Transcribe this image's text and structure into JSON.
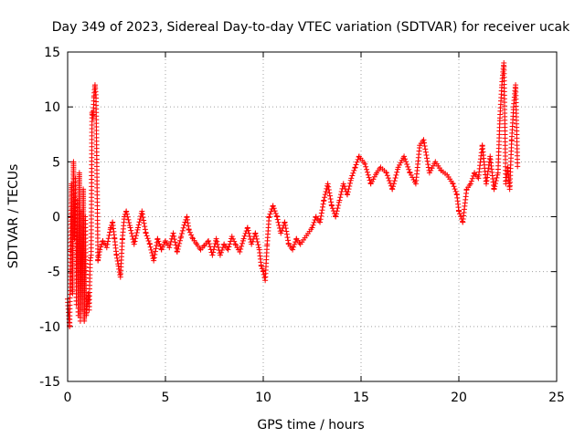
{
  "chart_data": {
    "type": "scatter",
    "title": "Day 349 of 2023, Sidereal Day-to-day VTEC variation (SDTVAR) for receiver ucak",
    "xlabel": "GPS time / hours",
    "ylabel": "SDTVAR / TECUs",
    "xlim": [
      0,
      25
    ],
    "ylim": [
      -15,
      15
    ],
    "xticks": [
      0,
      5,
      10,
      15,
      20,
      25
    ],
    "yticks": [
      -15,
      -10,
      -5,
      0,
      5,
      10,
      15
    ],
    "x_tick_labels": [
      "0",
      "5",
      "10",
      "15",
      "20",
      "25"
    ],
    "y_tick_labels": [
      "-15",
      "-10",
      "-5",
      "0",
      "5",
      "10",
      "15"
    ],
    "grid": true,
    "marker": "+",
    "series": [
      {
        "name": "SDTVAR",
        "color": "#ff0000",
        "trace": [
          [
            0.0,
            -7.5
          ],
          [
            0.1,
            -10.0
          ],
          [
            0.15,
            -3.0
          ],
          [
            0.2,
            3.0
          ],
          [
            0.25,
            -7.0
          ],
          [
            0.3,
            5.0
          ],
          [
            0.35,
            -2.0
          ],
          [
            0.4,
            3.5
          ],
          [
            0.45,
            -8.0
          ],
          [
            0.5,
            1.5
          ],
          [
            0.55,
            -9.0
          ],
          [
            0.6,
            4.0
          ],
          [
            0.65,
            -9.5
          ],
          [
            0.7,
            0.5
          ],
          [
            0.75,
            -8.5
          ],
          [
            0.8,
            2.5
          ],
          [
            0.85,
            -9.5
          ],
          [
            0.9,
            0.0
          ],
          [
            0.95,
            -9.0
          ],
          [
            1.0,
            -8.0
          ],
          [
            1.05,
            -7.0
          ],
          [
            1.1,
            -8.5
          ],
          [
            1.15,
            -4.0
          ],
          [
            1.2,
            -3.5
          ],
          [
            1.25,
            9.5
          ],
          [
            1.3,
            9.0
          ],
          [
            1.35,
            11.0
          ],
          [
            1.4,
            12.0
          ],
          [
            1.45,
            10.8
          ],
          [
            1.55,
            -4.0
          ],
          [
            1.65,
            -3.0
          ],
          [
            1.8,
            -2.2
          ],
          [
            2.0,
            -2.8
          ],
          [
            2.2,
            -1.0
          ],
          [
            2.3,
            -0.5
          ],
          [
            2.4,
            -2.0
          ],
          [
            2.5,
            -3.5
          ],
          [
            2.6,
            -4.5
          ],
          [
            2.7,
            -5.5
          ],
          [
            2.8,
            -2.0
          ],
          [
            2.9,
            0.0
          ],
          [
            3.0,
            0.5
          ],
          [
            3.2,
            -1.0
          ],
          [
            3.4,
            -2.5
          ],
          [
            3.6,
            -1.0
          ],
          [
            3.8,
            0.5
          ],
          [
            4.0,
            -1.5
          ],
          [
            4.2,
            -2.5
          ],
          [
            4.4,
            -4.0
          ],
          [
            4.6,
            -2.0
          ],
          [
            4.8,
            -3.0
          ],
          [
            5.0,
            -2.2
          ],
          [
            5.2,
            -2.8
          ],
          [
            5.4,
            -1.5
          ],
          [
            5.6,
            -3.2
          ],
          [
            5.8,
            -1.8
          ],
          [
            6.0,
            -0.5
          ],
          [
            6.1,
            0.0
          ],
          [
            6.2,
            -1.2
          ],
          [
            6.4,
            -2.0
          ],
          [
            6.6,
            -2.5
          ],
          [
            6.8,
            -3.0
          ],
          [
            7.0,
            -2.6
          ],
          [
            7.2,
            -2.2
          ],
          [
            7.4,
            -3.5
          ],
          [
            7.6,
            -2.0
          ],
          [
            7.8,
            -3.5
          ],
          [
            8.0,
            -2.5
          ],
          [
            8.2,
            -3.0
          ],
          [
            8.4,
            -1.8
          ],
          [
            8.6,
            -2.6
          ],
          [
            8.8,
            -3.2
          ],
          [
            9.0,
            -2.0
          ],
          [
            9.2,
            -1.0
          ],
          [
            9.4,
            -2.5
          ],
          [
            9.6,
            -1.5
          ],
          [
            9.8,
            -3.0
          ],
          [
            9.9,
            -4.5
          ],
          [
            10.0,
            -5.0
          ],
          [
            10.1,
            -5.8
          ],
          [
            10.2,
            -2.5
          ],
          [
            10.3,
            0.0
          ],
          [
            10.5,
            1.0
          ],
          [
            10.7,
            0.0
          ],
          [
            10.9,
            -1.5
          ],
          [
            11.1,
            -0.5
          ],
          [
            11.3,
            -2.5
          ],
          [
            11.5,
            -3.0
          ],
          [
            11.7,
            -2.0
          ],
          [
            11.9,
            -2.5
          ],
          [
            12.5,
            -1.0
          ],
          [
            12.7,
            0.0
          ],
          [
            12.9,
            -0.5
          ],
          [
            13.1,
            1.5
          ],
          [
            13.3,
            3.0
          ],
          [
            13.5,
            1.0
          ],
          [
            13.7,
            0.0
          ],
          [
            13.9,
            1.5
          ],
          [
            14.1,
            3.0
          ],
          [
            14.3,
            2.0
          ],
          [
            14.5,
            3.5
          ],
          [
            14.7,
            4.5
          ],
          [
            14.9,
            5.5
          ],
          [
            15.2,
            4.8
          ],
          [
            15.5,
            3.0
          ],
          [
            15.8,
            4.0
          ],
          [
            16.0,
            4.5
          ],
          [
            16.3,
            4.0
          ],
          [
            16.6,
            2.5
          ],
          [
            16.9,
            4.5
          ],
          [
            17.2,
            5.5
          ],
          [
            17.5,
            4.0
          ],
          [
            17.8,
            3.0
          ],
          [
            18.0,
            6.5
          ],
          [
            18.2,
            7.0
          ],
          [
            18.5,
            4.0
          ],
          [
            18.8,
            5.0
          ],
          [
            19.1,
            4.2
          ],
          [
            19.4,
            3.8
          ],
          [
            19.7,
            3.0
          ],
          [
            19.9,
            2.0
          ],
          [
            20.0,
            0.5
          ],
          [
            20.2,
            -0.5
          ],
          [
            20.4,
            2.5
          ],
          [
            20.6,
            3.0
          ],
          [
            20.8,
            4.0
          ],
          [
            21.0,
            3.5
          ],
          [
            21.2,
            6.5
          ],
          [
            21.4,
            3.0
          ],
          [
            21.6,
            5.5
          ],
          [
            21.8,
            2.5
          ],
          [
            22.0,
            4.0
          ],
          [
            22.1,
            9.0
          ],
          [
            22.2,
            12.0
          ],
          [
            22.3,
            14.0
          ],
          [
            22.4,
            3.0
          ],
          [
            22.5,
            4.5
          ],
          [
            22.6,
            2.5
          ],
          [
            22.7,
            7.0
          ],
          [
            22.8,
            10.0
          ],
          [
            22.9,
            12.0
          ],
          [
            23.0,
            4.5
          ]
        ]
      }
    ]
  }
}
